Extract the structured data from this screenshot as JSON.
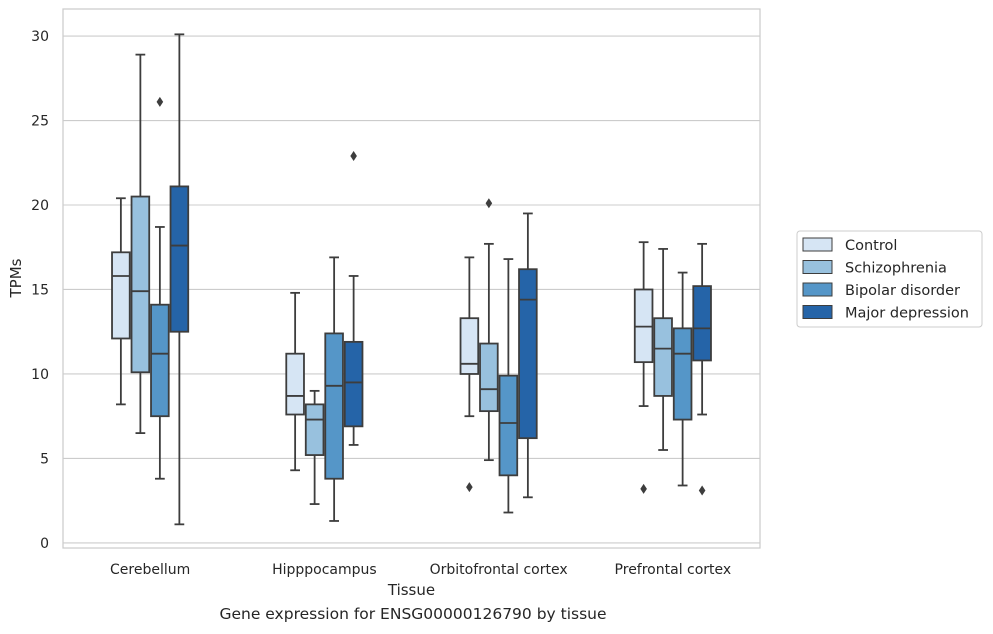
{
  "chart_data": {
    "type": "box",
    "caption": "Gene expression for ENSG00000126790 by tissue",
    "xlabel": "Tissue",
    "ylabel": "TPMs",
    "ylim": [
      -0.3,
      31.6
    ],
    "yticks": [
      0,
      5,
      10,
      15,
      20,
      25,
      30
    ],
    "categories": [
      "Cerebellum",
      "Hipppocampus",
      "Orbitofrontal cortex",
      "Prefrontal cortex"
    ],
    "grid": "horizontal",
    "legend_position": "right",
    "series": [
      {
        "name": "Control",
        "color": "#d6e5f4",
        "boxes": [
          {
            "whislo": 8.2,
            "q1": 12.1,
            "med": 15.8,
            "q3": 17.2,
            "whishi": 20.4,
            "fliers": []
          },
          {
            "whislo": 4.3,
            "q1": 7.6,
            "med": 8.7,
            "q3": 11.2,
            "whishi": 14.8,
            "fliers": []
          },
          {
            "whislo": 7.5,
            "q1": 10.0,
            "med": 10.6,
            "q3": 13.3,
            "whishi": 16.9,
            "fliers": [
              3.3
            ]
          },
          {
            "whislo": 8.1,
            "q1": 10.7,
            "med": 12.8,
            "q3": 15.0,
            "whishi": 17.8,
            "fliers": [
              3.2
            ]
          }
        ]
      },
      {
        "name": "Schizophrenia",
        "color": "#98c1de",
        "boxes": [
          {
            "whislo": 6.5,
            "q1": 10.1,
            "med": 14.9,
            "q3": 20.5,
            "whishi": 28.9,
            "fliers": []
          },
          {
            "whislo": 2.3,
            "q1": 5.2,
            "med": 7.3,
            "q3": 8.2,
            "whishi": 9.0,
            "fliers": []
          },
          {
            "whislo": 4.9,
            "q1": 7.8,
            "med": 9.1,
            "q3": 11.8,
            "whishi": 17.7,
            "fliers": [
              20.1
            ]
          },
          {
            "whislo": 5.5,
            "q1": 8.7,
            "med": 11.5,
            "q3": 13.3,
            "whishi": 17.4,
            "fliers": []
          }
        ]
      },
      {
        "name": "Bipolar disorder",
        "color": "#5596c8",
        "boxes": [
          {
            "whislo": 3.8,
            "q1": 7.5,
            "med": 11.2,
            "q3": 14.1,
            "whishi": 18.7,
            "fliers": [
              26.1
            ]
          },
          {
            "whislo": 1.3,
            "q1": 3.8,
            "med": 9.3,
            "q3": 12.4,
            "whishi": 16.9,
            "fliers": []
          },
          {
            "whislo": 1.8,
            "q1": 4.0,
            "med": 7.1,
            "q3": 9.9,
            "whishi": 16.8,
            "fliers": []
          },
          {
            "whislo": 3.4,
            "q1": 7.3,
            "med": 11.2,
            "q3": 12.7,
            "whishi": 16.0,
            "fliers": []
          }
        ]
      },
      {
        "name": "Major depression",
        "color": "#2564a8",
        "boxes": [
          {
            "whislo": 1.1,
            "q1": 12.5,
            "med": 17.6,
            "q3": 21.1,
            "whishi": 30.1,
            "fliers": []
          },
          {
            "whislo": 5.8,
            "q1": 6.9,
            "med": 9.5,
            "q3": 11.9,
            "whishi": 15.8,
            "fliers": [
              22.9
            ]
          },
          {
            "whislo": 2.7,
            "q1": 6.2,
            "med": 14.4,
            "q3": 16.2,
            "whishi": 19.5,
            "fliers": []
          },
          {
            "whislo": 7.6,
            "q1": 10.8,
            "med": 12.7,
            "q3": 15.2,
            "whishi": 17.7,
            "fliers": [
              3.1
            ]
          }
        ]
      }
    ]
  }
}
